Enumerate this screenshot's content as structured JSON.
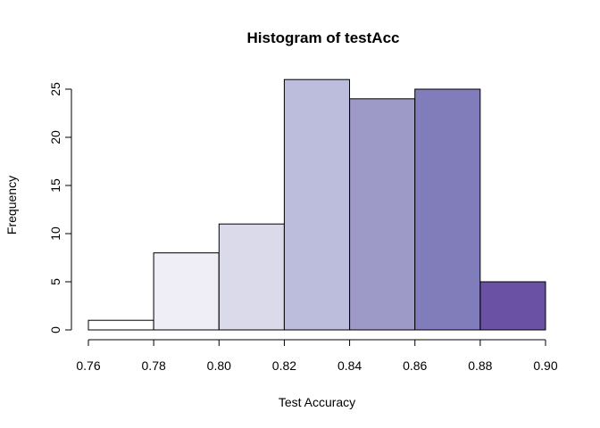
{
  "chart_data": {
    "type": "bar",
    "subtype": "histogram",
    "title": "Histogram of testAcc",
    "xlabel": "Test Accuracy",
    "ylabel": "Frequency",
    "bins": [
      {
        "start": 0.76,
        "end": 0.78,
        "count": 1,
        "color": "#FFFFFF"
      },
      {
        "start": 0.78,
        "end": 0.8,
        "count": 8,
        "color": "#EFEDF5"
      },
      {
        "start": 0.8,
        "end": 0.82,
        "count": 11,
        "color": "#DADAEB"
      },
      {
        "start": 0.82,
        "end": 0.84,
        "count": 26,
        "color": "#BCBDDC"
      },
      {
        "start": 0.84,
        "end": 0.86,
        "count": 24,
        "color": "#9E9AC8"
      },
      {
        "start": 0.86,
        "end": 0.88,
        "count": 25,
        "color": "#807DBA"
      },
      {
        "start": 0.88,
        "end": 0.9,
        "count": 5,
        "color": "#6A51A3"
      }
    ],
    "x_ticks": [
      "0.76",
      "0.78",
      "0.80",
      "0.82",
      "0.84",
      "0.86",
      "0.88",
      "0.90"
    ],
    "y_ticks": [
      "0",
      "5",
      "10",
      "15",
      "20",
      "25"
    ],
    "xlim": [
      0.76,
      0.9
    ],
    "ylim": [
      0,
      25
    ],
    "grid": false,
    "legend": "none"
  }
}
